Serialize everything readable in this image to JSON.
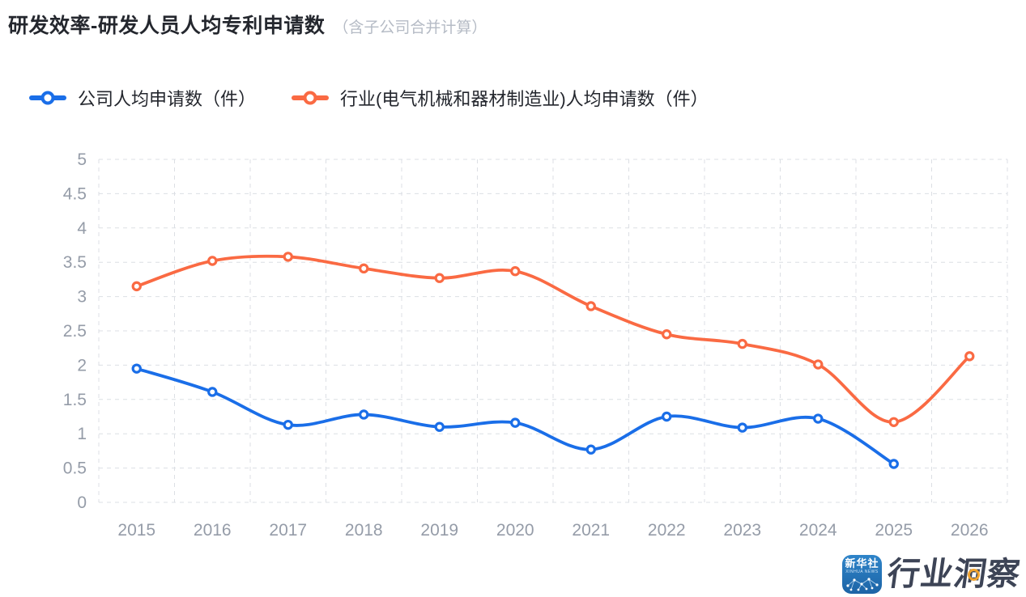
{
  "header": {
    "title": "研发效率-研发人员人均专利申请数",
    "subtitle": "（含子公司合并计算）"
  },
  "legend": {
    "items": [
      {
        "label": "公司人均申请数（件）",
        "color": "#1a6ee8"
      },
      {
        "label": "行业(电气机械和器材制造业)人均申请数（件）",
        "color": "#fa6a43"
      }
    ]
  },
  "chart_data": {
    "type": "line",
    "title": "研发效率-研发人员人均专利申请数",
    "categories": [
      "2015",
      "2016",
      "2017",
      "2018",
      "2019",
      "2020",
      "2021",
      "2022",
      "2023",
      "2024",
      "2025",
      "2026"
    ],
    "series": [
      {
        "name": "公司人均申请数（件）",
        "color": "#1a6ee8",
        "values": [
          1.95,
          1.61,
          1.13,
          1.28,
          1.1,
          1.16,
          0.77,
          1.25,
          1.09,
          1.22,
          0.56,
          null
        ]
      },
      {
        "name": "行业(电气机械和器材制造业)人均申请数（件）",
        "color": "#fa6a43",
        "values": [
          3.15,
          3.52,
          3.58,
          3.41,
          3.27,
          3.37,
          2.86,
          2.45,
          2.31,
          2.01,
          1.17,
          2.13
        ]
      }
    ],
    "xlabel": "",
    "ylabel": "",
    "ylim": [
      0,
      5
    ],
    "ystep": 0.5,
    "smooth": true,
    "grid": "dashed",
    "legend_position": "top-left"
  },
  "style": {
    "grid_color": "#dcdfe4",
    "axis_label_color": "#959ca8",
    "background": "#ffffff"
  },
  "logo": {
    "icon_title": "新华社",
    "icon_subtitle": "XINHUA NEWS",
    "brand": "行业洞察"
  }
}
